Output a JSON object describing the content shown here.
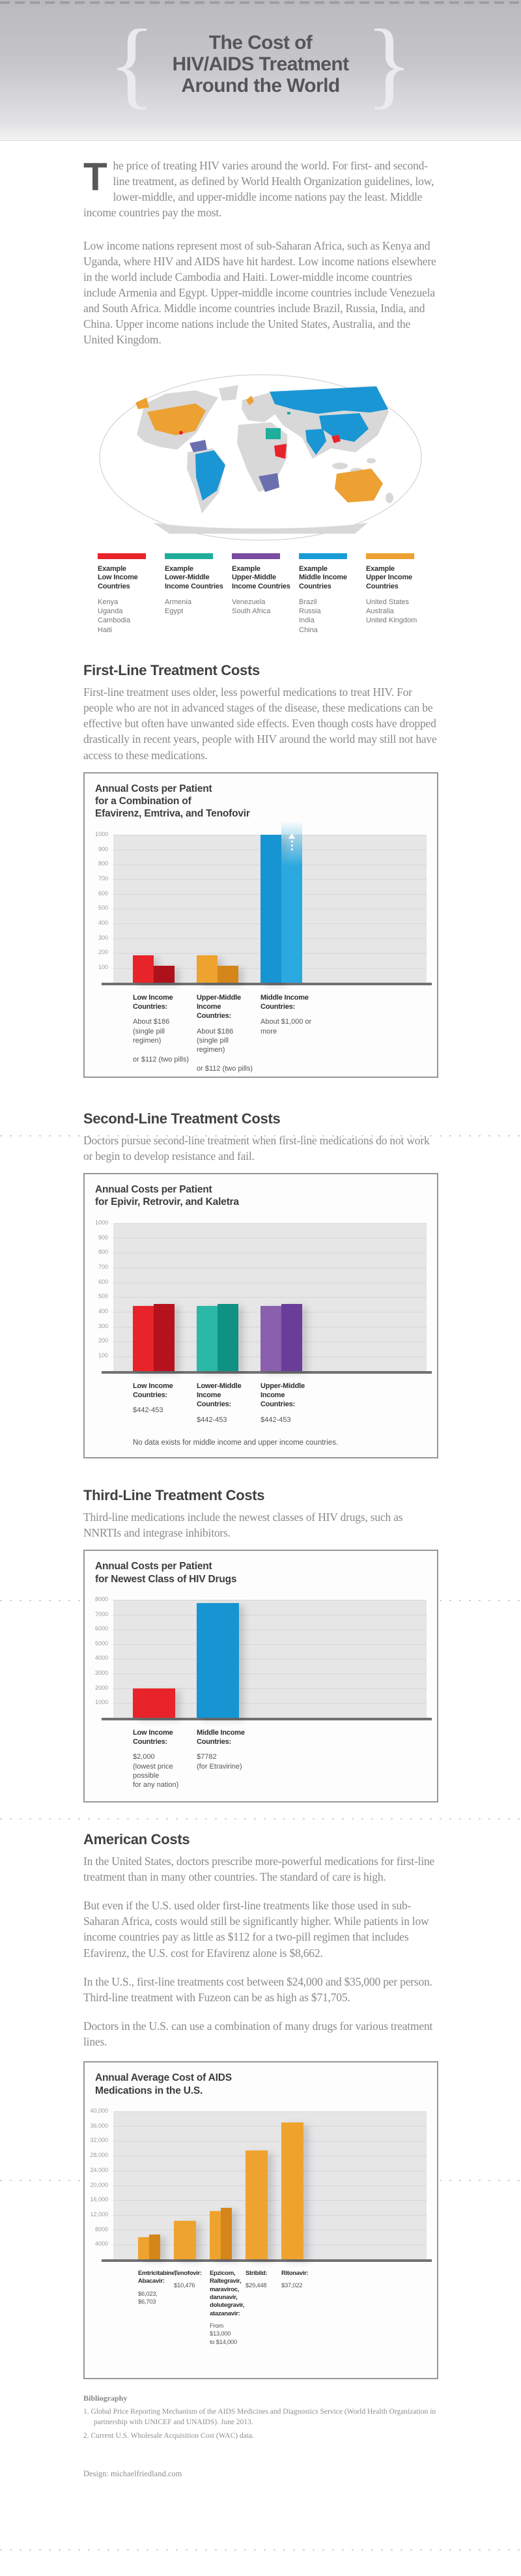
{
  "header": {
    "brace_left": "{",
    "brace_right": "}",
    "title_lines": [
      "The Cost of",
      "HIV/AIDS Treatment",
      "Around the World"
    ]
  },
  "intro": {
    "dropcap": "T",
    "para1": "he price of treating HIV varies around the world. For first- and second-line treatment, as defined by World Health Organization guidelines, low, lower-middle, and upper-middle income nations pay the least. Middle income countries pay the most.",
    "para2": "Low income nations represent most of sub-Saharan Africa, such as Kenya and Uganda, where HIV and AIDS have hit hardest. Low income nations elsewhere in the world include Cambodia and Haiti. Lower-middle income countries include Armenia and Egypt. Upper-middle income countries include Venezuela and South Africa. Middle income countries include Brazil, Russia, India, and China. Upper income nations include the United States, Australia, and the United Kingdom."
  },
  "legend": {
    "items": [
      {
        "title": "Example\nLow Income\nCountries",
        "countries": "Kenya\nUganda\nCambodia\nHaiti",
        "color": "#e8232a"
      },
      {
        "title": "Example\nLower-Middle\nIncome Countries",
        "countries": "Armenia\nEgypt",
        "color": "#1fae9a"
      },
      {
        "title": "Example\nUpper-Middle\nIncome Countries",
        "countries": "Venezuela\nSouth Africa",
        "color": "#7a4ba0"
      },
      {
        "title": "Example\nMiddle Income\nCountries",
        "countries": "Brazil\nRussia\nIndia\nChina",
        "color": "#189cd8"
      },
      {
        "title": "Example\nUpper Income\nCountries",
        "countries": "United States\nAustralia\nUnited Kingdom",
        "color": "#eda133"
      }
    ]
  },
  "sections": {
    "first_line": {
      "heading": "First-Line Treatment Costs",
      "body": "First-line treatment uses older, less powerful medications to treat HIV. For people who are not in advanced stages of the disease, these medications can be effective but often have unwanted side effects. Even though costs have dropped drastically in recent years, people with HIV around the world may still not have access to these medications."
    },
    "second_line": {
      "heading": "Second-Line Treatment Costs",
      "body": "Doctors pursue second-line treatment when first-line medications do not work or begin to develop resistance and fail."
    },
    "third_line": {
      "heading": "Third-Line Treatment Costs",
      "body": "Third-line medications include the newest classes of HIV drugs, such as NNRTIs and integrase inhibitors."
    },
    "american": {
      "heading": "American Costs",
      "paras": [
        "In the United States, doctors prescribe more-powerful medications for first-line treatment than in many other countries. The standard of care is high.",
        "But even if the U.S. used older first-line treatments like those used in sub-Saharan Africa, costs would still be significantly higher. While patients in low income countries pay as little as $112 for a two-pill regimen that includes Efavirenz, the U.S. cost for Efavirenz alone is $8,662.",
        "In the U.S., first-line treatments cost between $24,000 and $35,000 per person. Third-line treatment with Fuzeon can be as high as $71,705.",
        "Doctors in the U.S. can use a combination of many drugs for various treatment lines."
      ]
    }
  },
  "chart_data": [
    {
      "type": "bar",
      "title": "Annual Costs per Patient\nfor a Combination of\nEfavirenz, Emtriva, and Tenofovir",
      "ylim": [
        0,
        1000
      ],
      "grid": true,
      "yticks": [
        100,
        200,
        300,
        400,
        500,
        600,
        700,
        800,
        900,
        1000
      ],
      "ytick_labels": [
        "100",
        "200",
        "300",
        "400",
        "500",
        "600",
        "700",
        "800",
        "900",
        "1000"
      ],
      "groups": [
        {
          "name": "Low Income\nCountries:",
          "detail": "About $186\n(single pill regimen)\n\nor $112 (two pills)",
          "bars": [
            {
              "value": 186,
              "color": "#e8232a"
            },
            {
              "value": 112,
              "color": "#ae111a"
            }
          ]
        },
        {
          "name": "Upper-Middle Income\nCountries:",
          "detail": "About $186\n(single pill regimen)\n\nor $112 (two pills)",
          "bars": [
            {
              "value": 186,
              "color": "#efa32f"
            },
            {
              "value": 112,
              "color": "#d4861a"
            }
          ]
        },
        {
          "name": "Middle Income\nCountries:",
          "detail": "About $1,000 or more",
          "bars": [
            {
              "value": 1000,
              "color": "#1695d2"
            },
            {
              "value": 1090,
              "color": "#29a9e0",
              "overflow_arrow": true
            }
          ]
        }
      ]
    },
    {
      "type": "bar",
      "title": "Annual Costs per Patient\nfor Epivir, Retrovir, and Kaletra",
      "ylim": [
        0,
        1000
      ],
      "grid": true,
      "yticks": [
        100,
        200,
        300,
        400,
        500,
        600,
        700,
        800,
        900,
        1000
      ],
      "ytick_labels": [
        "100",
        "200",
        "300",
        "400",
        "500",
        "600",
        "700",
        "800",
        "900",
        "1000"
      ],
      "note": "No data exists for middle income and upper income countries.",
      "groups": [
        {
          "name": "Low Income\nCountries:",
          "detail": "$442-453",
          "bars": [
            {
              "value": 442,
              "color": "#e8232a"
            },
            {
              "value": 453,
              "color": "#b5121c"
            }
          ]
        },
        {
          "name": "Lower-Middle Income\nCountries:",
          "detail": "$442-453",
          "bars": [
            {
              "value": 442,
              "color": "#2bb8a6"
            },
            {
              "value": 453,
              "color": "#0f9184"
            }
          ]
        },
        {
          "name": "Upper-Middle Income\nCountries:",
          "detail": "$442-453",
          "bars": [
            {
              "value": 442,
              "color": "#8a5fad"
            },
            {
              "value": 453,
              "color": "#6a3d99"
            }
          ]
        }
      ]
    },
    {
      "type": "bar",
      "title": "Annual Costs per Patient\nfor Newest Class of HIV Drugs",
      "ylim": [
        0,
        8000
      ],
      "grid": true,
      "yticks": [
        1000,
        2000,
        3000,
        4000,
        5000,
        6000,
        7000,
        8000
      ],
      "ytick_labels": [
        "1000",
        "2000",
        "3000",
        "4000",
        "5000",
        "6000",
        "7000",
        "8000"
      ],
      "groups": [
        {
          "name": "Low Income\nCountries:",
          "detail": "$2,000\n(lowest price possible\nfor any nation)",
          "bars": [
            {
              "value": 2000,
              "color": "#e8232a"
            }
          ]
        },
        {
          "name": "Middle Income\nCountries:",
          "detail": "$7782\n(for Etravirine)",
          "bars": [
            {
              "value": 7782,
              "color": "#1695d2"
            }
          ]
        }
      ]
    },
    {
      "type": "bar",
      "title": "Annual Average Cost of AIDS\nMedications in the U.S.",
      "ylim": [
        0,
        40000
      ],
      "grid": true,
      "yticks": [
        4000,
        8000,
        12000,
        16000,
        20000,
        24000,
        28000,
        32000,
        36000,
        40000
      ],
      "ytick_labels": [
        "4000",
        "8000",
        "12,000",
        "16,000",
        "20,000",
        "24,000",
        "28,000",
        "32,000",
        "36,000",
        "40,000"
      ],
      "groups": [
        {
          "name": "Emtricitabine,\nAbacavir:",
          "detail": "$6,023,\n$6,703",
          "bars": [
            {
              "value": 6023,
              "color": "#efa32f"
            },
            {
              "value": 6703,
              "color": "#d4861a"
            }
          ]
        },
        {
          "name": "Tenofovir:",
          "detail": "$10,476",
          "bars": [
            {
              "value": 10476,
              "color": "#efa32f"
            }
          ]
        },
        {
          "name": "Epzicom,\nRaltegravir,\nmaraviroc,\ndarunavir,\ndolutegravir,\natazanavir:",
          "detail": "From $13,000\nto $14,000",
          "bars": [
            {
              "value": 13000,
              "color": "#efa32f"
            },
            {
              "value": 14000,
              "color": "#d4861a"
            }
          ]
        },
        {
          "name": "Stribild:",
          "detail": "$29,448",
          "bars": [
            {
              "value": 29448,
              "color": "#efa32f"
            }
          ]
        },
        {
          "name": "Ritonavir:",
          "detail": "$37,022",
          "bars": [
            {
              "value": 37022,
              "color": "#efa32f"
            }
          ]
        }
      ]
    }
  ],
  "bibliography": {
    "heading": "Bibliography",
    "items": [
      "1. Global Price Reporting Mechanism of the AIDS Medicines and Diagnostics Service (World Health Organization in partnership with UNICEF and UNAIDS). June 2013.",
      "2. Current U.S. Wholesale Acquisition Cost (WAC) data."
    ],
    "design_credit": "Design: michaelfriedland.com"
  }
}
